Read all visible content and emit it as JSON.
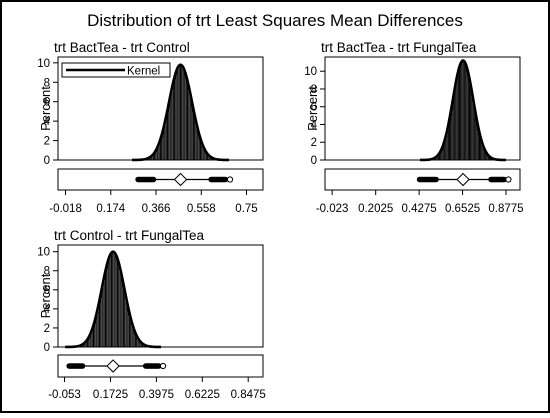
{
  "figure": {
    "title": "Distribution of trt Least Squares Mean Differences"
  },
  "legend": {
    "entry": "Kernel"
  },
  "chart_data": [
    {
      "type": "bar",
      "title": "trt BactTea - trt Control",
      "ylabel": "Percent",
      "ylim": [
        0,
        10.6
      ],
      "yticks": [
        0,
        2,
        4,
        6,
        8,
        10
      ],
      "xlim": [
        -0.05,
        0.82
      ],
      "xticks": [
        -0.018,
        0.174,
        0.366,
        0.558,
        0.75
      ],
      "xtick_labels": [
        "-0.018",
        "0.174",
        "0.366",
        "0.558",
        "0.75"
      ],
      "distribution": {
        "center": 0.47,
        "sd": 0.049,
        "peak_percent": 9.8,
        "range": [
          0.28,
          0.68
        ]
      },
      "boxplot": {
        "min": 0.29,
        "q1": 0.42,
        "median": 0.47,
        "mean": 0.47,
        "q3": 0.52,
        "max": 0.68,
        "whisker_low": 0.355,
        "whisker_high": 0.6
      }
    },
    {
      "type": "bar",
      "title": "trt BactTea - trt FungalTea",
      "ylabel": "Percent",
      "ylim": [
        0,
        11.6
      ],
      "yticks": [
        0,
        2,
        4,
        6,
        8,
        10
      ],
      "xlim": [
        -0.06,
        0.95
      ],
      "xticks": [
        -0.023,
        0.2025,
        0.4275,
        0.6525,
        0.8775
      ],
      "xtick_labels": [
        "-0.023",
        "0.2025",
        "0.4275",
        "0.6525",
        "0.8775"
      ],
      "distribution": {
        "center": 0.655,
        "sd": 0.053,
        "peak_percent": 11.2,
        "range": [
          0.43,
          0.89
        ]
      },
      "boxplot": {
        "min": 0.43,
        "q1": 0.6,
        "median": 0.655,
        "mean": 0.655,
        "q3": 0.71,
        "max": 0.89,
        "whisker_low": 0.515,
        "whisker_high": 0.8
      }
    },
    {
      "type": "bar",
      "title": "trt Control - trt FungalTea",
      "ylabel": "Percent",
      "ylim": [
        0,
        10.7
      ],
      "yticks": [
        0,
        2,
        4,
        6,
        8,
        10
      ],
      "xlim": [
        -0.085,
        0.92
      ],
      "xticks": [
        -0.053,
        0.1725,
        0.3975,
        0.6225,
        0.8475
      ],
      "xtick_labels": [
        "-0.053",
        "0.1725",
        "0.3975",
        "0.6225",
        "0.8475"
      ],
      "distribution": {
        "center": 0.185,
        "sd": 0.056,
        "peak_percent": 10.0,
        "range": [
          -0.04,
          0.43
        ]
      },
      "boxplot": {
        "min": -0.03,
        "q1": 0.13,
        "median": 0.185,
        "mean": 0.185,
        "q3": 0.24,
        "max": 0.43,
        "whisker_low": 0.035,
        "whisker_high": 0.345
      }
    }
  ]
}
